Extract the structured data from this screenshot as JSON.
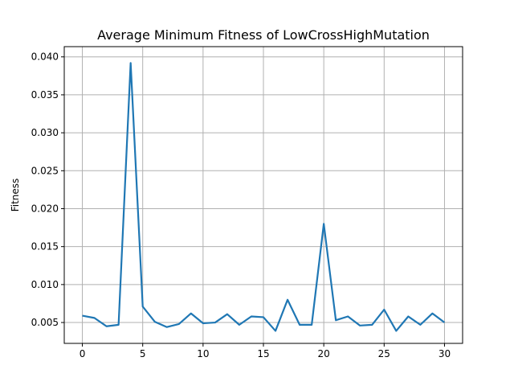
{
  "chart_data": {
    "type": "line",
    "title": "Average Minimum Fitness of LowCrossHighMutation",
    "xlabel": "",
    "ylabel": "Fitness",
    "xlim": [
      -1.5,
      31.5
    ],
    "ylim": [
      0.00225,
      0.04135
    ],
    "x_ticks": [
      0,
      5,
      10,
      15,
      20,
      25,
      30
    ],
    "y_ticks": [
      0.005,
      0.01,
      0.015,
      0.02,
      0.025,
      0.03,
      0.035,
      0.04
    ],
    "x_tick_labels": [
      "0",
      "5",
      "10",
      "15",
      "20",
      "25",
      "30"
    ],
    "y_tick_labels": [
      "0.005",
      "0.010",
      "0.015",
      "0.020",
      "0.025",
      "0.030",
      "0.035",
      "0.040"
    ],
    "grid": true,
    "line_color": "#1f77b4",
    "grid_color": "#b0b0b0",
    "series": [
      {
        "x": [
          0,
          1,
          2,
          3,
          4,
          5,
          6,
          7,
          8,
          9,
          10,
          11,
          12,
          13,
          14,
          15,
          16,
          17,
          18,
          19,
          20,
          21,
          22,
          23,
          24,
          25,
          26,
          27,
          28,
          29,
          30
        ],
        "values": [
          0.0059,
          0.0056,
          0.0045,
          0.0047,
          0.0392,
          0.0071,
          0.0051,
          0.0044,
          0.0048,
          0.0062,
          0.0049,
          0.005,
          0.0061,
          0.0047,
          0.0058,
          0.0057,
          0.0039,
          0.008,
          0.0047,
          0.0047,
          0.018,
          0.0053,
          0.0058,
          0.0046,
          0.0047,
          0.0067,
          0.0039,
          0.0058,
          0.0047,
          0.0062,
          0.005
        ]
      }
    ]
  }
}
